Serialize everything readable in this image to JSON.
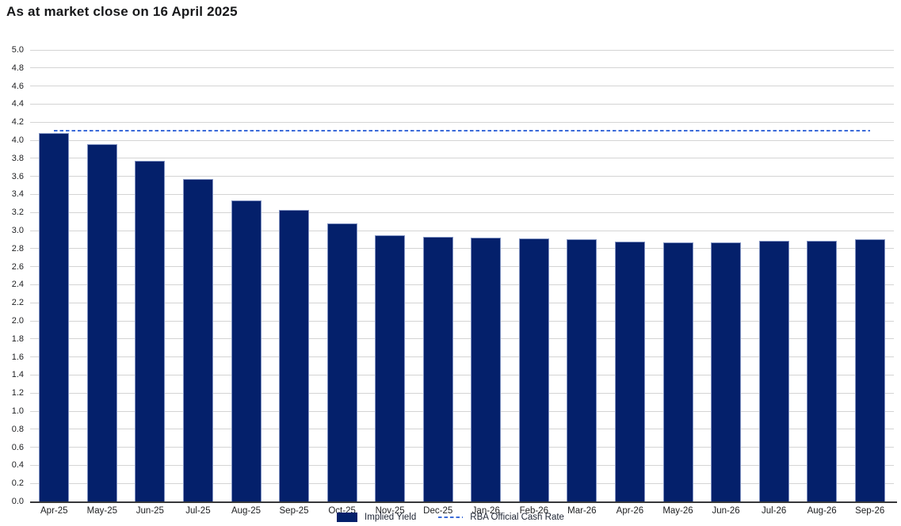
{
  "chart_data": {
    "type": "bar",
    "title": "As at market close on 16 April 2025",
    "categories": [
      "Apr-25",
      "May-25",
      "Jun-25",
      "Jul-25",
      "Aug-25",
      "Sep-25",
      "Oct-25",
      "Nov-25",
      "Dec-25",
      "Jan-26",
      "Feb-26",
      "Mar-26",
      "Apr-26",
      "May-26",
      "Jun-26",
      "Jul-26",
      "Aug-26",
      "Sep-26"
    ],
    "series": [
      {
        "name": "Implied Yield",
        "type": "bar",
        "color": "#04206b",
        "values": [
          4.08,
          3.96,
          3.77,
          3.57,
          3.33,
          3.23,
          3.08,
          2.95,
          2.93,
          2.92,
          2.91,
          2.9,
          2.88,
          2.87,
          2.87,
          2.89,
          2.89,
          2.9
        ]
      },
      {
        "name": "RBA Official Cash Rate",
        "type": "dashed_line",
        "color": "#3b6bd9",
        "value": 4.1
      }
    ],
    "xlabel": "",
    "ylabel": "",
    "ylim": [
      0.0,
      5.0
    ],
    "ytick_step": 0.2,
    "ytick_format_decimals": 1,
    "grid": true,
    "legend_position": "bottom-center"
  },
  "colors": {
    "background": "#ffffff",
    "bar_fill": "#04206b",
    "bar_border": "#8193c2",
    "cash_rate_line": "#3b6bd9",
    "gridline": "#d4d4d4",
    "axis_line": "#37383a",
    "title_text": "#17181a",
    "tick_text": "#1d1e20"
  }
}
